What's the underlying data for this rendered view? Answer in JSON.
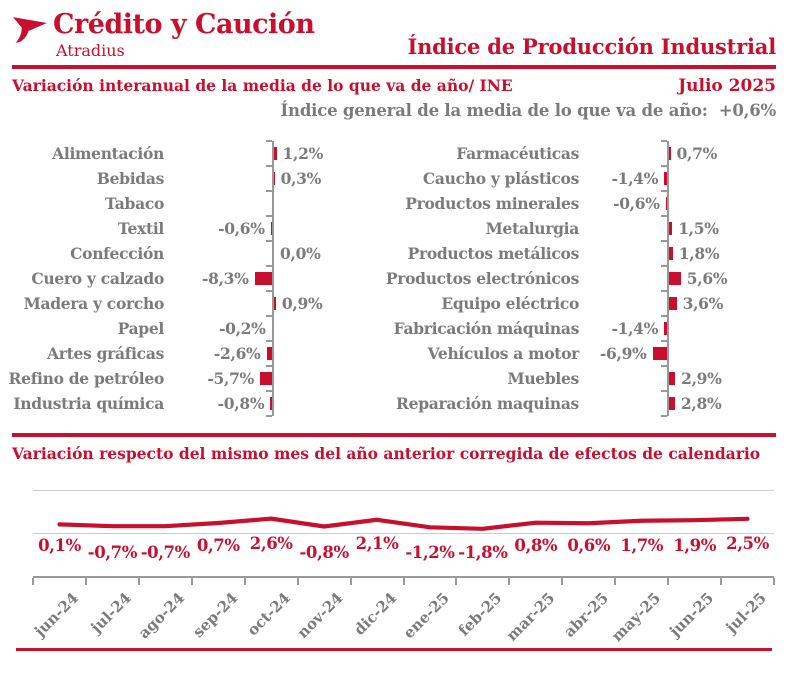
{
  "brand": {
    "name": "Crédito y Caución",
    "subname": "Atradius"
  },
  "header": {
    "title": "Índice de Producción Industrial"
  },
  "section_interannual": {
    "title": "Variación interanual de la media de lo que va de año/ INE",
    "period": "Julio 2025",
    "general_index_note": "Índice general de la media de lo que va de año:  +0,6%"
  },
  "section_monthly": {
    "title": "Variación respecto del mismo mes del año anterior corregida de efectos de calendario"
  },
  "colors": {
    "red": "#C8102E",
    "gray_text": "#7B7B7D",
    "axis": "#999999",
    "gridline": "#CCCCCC"
  },
  "chart_data": [
    {
      "type": "bar",
      "orientation": "horizontal-diverging",
      "unit": "%",
      "title": "Variación interanual de la media de lo que va de año/ INE",
      "panels": [
        {
          "categories": [
            "Alimentación",
            "Bebidas",
            "Tabaco",
            "Textil",
            "Confección",
            "Cuero y calzado",
            "Madera y corcho",
            "Papel",
            "Artes gráficas",
            "Refino de petróleo",
            "Industria química"
          ],
          "values": [
            1.2,
            0.3,
            null,
            -0.6,
            0.0,
            -8.3,
            0.9,
            -0.2,
            -2.6,
            -5.7,
            -0.8
          ],
          "labels": [
            "1,2%",
            "0,3%",
            null,
            "-0,6%",
            "0,0%",
            "-8,3%",
            "0,9%",
            "-0,2%",
            "-2,6%",
            "-5,7%",
            "-0,8%"
          ]
        },
        {
          "categories": [
            "Farmacéuticas",
            "Caucho y plásticos",
            "Productos minerales",
            "Metalurgia",
            "Productos metálicos",
            "Productos electrónicos",
            "Equipo eléctrico",
            "Fabricación máquinas",
            "Vehículos a motor",
            "Muebles",
            "Reparación maquinas"
          ],
          "values": [
            0.7,
            -1.4,
            -0.6,
            1.5,
            1.8,
            5.6,
            3.6,
            -1.4,
            -6.9,
            2.9,
            2.8
          ],
          "labels": [
            "0,7%",
            "-1,4%",
            "-0,6%",
            "1,5%",
            "1,8%",
            "5,6%",
            "3,6%",
            "-1,4%",
            "-6,9%",
            "2,9%",
            "2,8%"
          ]
        }
      ]
    },
    {
      "type": "line",
      "unit": "%",
      "title": "Variación respecto del mismo mes del año anterior corregida de efectos de calendario",
      "categories": [
        "jun-24",
        "jul-24",
        "ago-24",
        "sep-24",
        "oct-24",
        "nov-24",
        "dic-24",
        "ene-25",
        "feb-25",
        "mar-25",
        "abr-25",
        "may-25",
        "jun-25",
        "jul-25"
      ],
      "values": [
        0.1,
        -0.7,
        -0.7,
        0.7,
        2.6,
        -0.8,
        2.1,
        -1.2,
        -1.8,
        0.8,
        0.6,
        1.7,
        1.9,
        2.5
      ],
      "labels": [
        "0,1%",
        "-0,7%",
        "-0,7%",
        "0,7%",
        "2,6%",
        "-0,8%",
        "2,1%",
        "-1,2%",
        "-1,8%",
        "0,8%",
        "0,6%",
        "1,7%",
        "1,9%",
        "2,5%"
      ],
      "legend": [],
      "grid": "top-and-bottom-lines-only"
    }
  ]
}
